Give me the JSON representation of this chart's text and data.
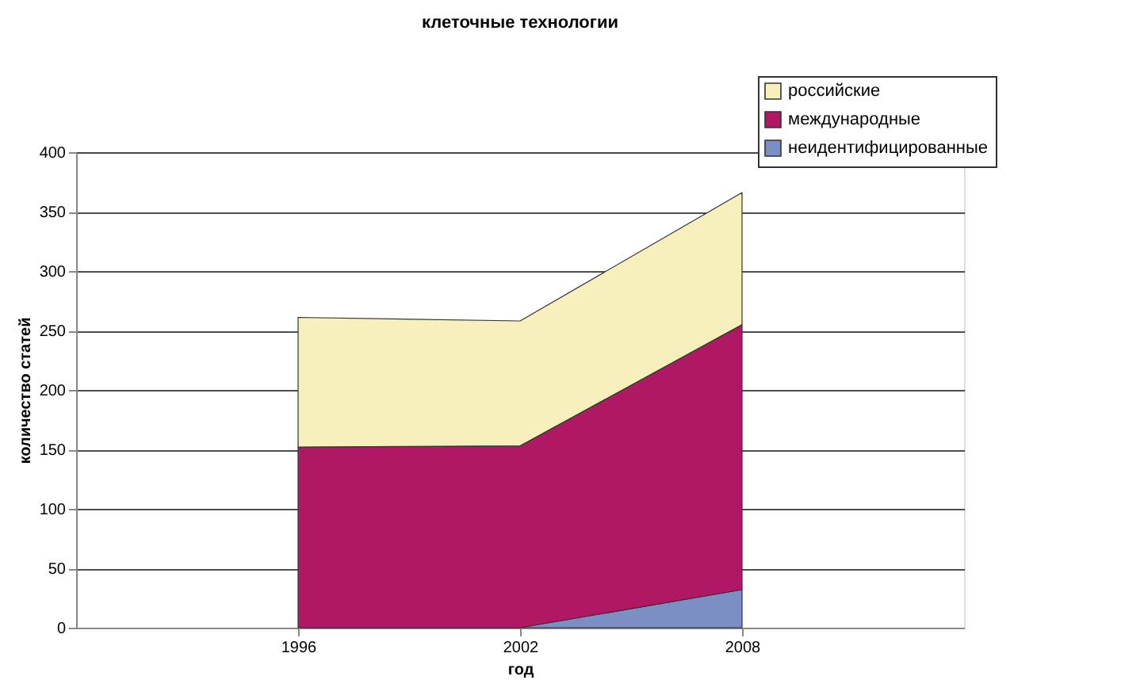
{
  "chart_data": {
    "type": "area",
    "title": "клеточные технологии",
    "xlabel": "год",
    "ylabel": "количество статей",
    "categories": [
      "1996",
      "2002",
      "2008"
    ],
    "stacked": true,
    "series": [
      {
        "name": "неидентифицированные",
        "color": "#7b8fc4",
        "values": [
          0,
          0,
          32
        ]
      },
      {
        "name": "международные",
        "color": "#b01866",
        "values": [
          152,
          153,
          223
        ]
      },
      {
        "name": "российские",
        "color": "#f7f0bd",
        "values": [
          109,
          105,
          111
        ]
      }
    ],
    "ylim": [
      0,
      400
    ],
    "yticks": [
      0,
      50,
      100,
      150,
      200,
      250,
      300,
      350,
      400
    ],
    "grid": "y",
    "legend": "top right"
  }
}
